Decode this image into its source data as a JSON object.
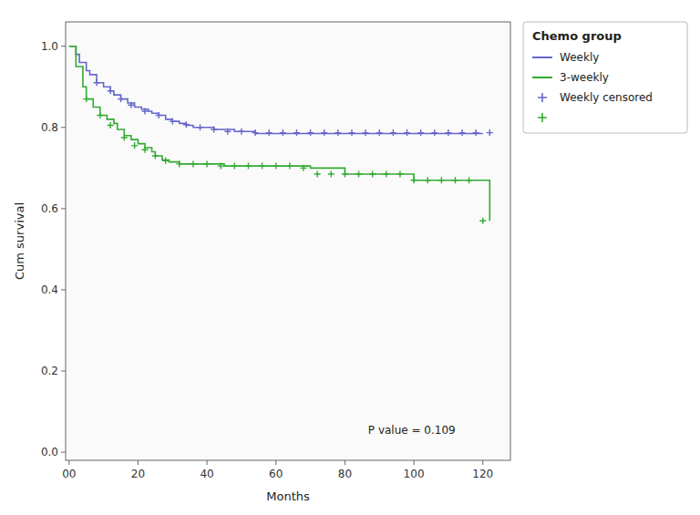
{
  "chart_data": {
    "type": "step",
    "xlabel": "Months",
    "ylabel": "Cum survival",
    "xlim": [
      -1,
      128
    ],
    "ylim": [
      -0.02,
      1.06
    ],
    "xticks": [
      {
        "value": 0,
        "label": "00"
      },
      20,
      40,
      60,
      80,
      100,
      120
    ],
    "yticks": [
      {
        "value": 0.0,
        "label": "0.0"
      },
      0.2,
      0.4,
      0.6,
      0.8,
      {
        "value": 1.0,
        "label": "1.0"
      }
    ],
    "grid": false,
    "legend": "right",
    "legend_title": "Chemo group",
    "annotation": "P value = 0.109",
    "series": [
      {
        "name": "Weekly",
        "type": "step",
        "color": "#6666cc",
        "x": [
          0,
          2,
          3,
          5,
          6,
          8,
          10,
          12,
          13,
          15,
          17,
          19,
          21,
          23,
          24,
          26,
          28,
          30,
          32,
          34,
          36,
          38,
          42,
          48,
          54,
          58,
          120
        ],
        "values": [
          1.0,
          0.98,
          0.96,
          0.94,
          0.93,
          0.91,
          0.9,
          0.89,
          0.88,
          0.87,
          0.86,
          0.85,
          0.845,
          0.84,
          0.835,
          0.83,
          0.82,
          0.815,
          0.81,
          0.805,
          0.8,
          0.8,
          0.795,
          0.79,
          0.785,
          0.785,
          0.785
        ]
      },
      {
        "name": "3-weekly",
        "type": "step",
        "color": "#33aa33",
        "x": [
          0,
          2,
          4,
          5,
          7,
          9,
          11,
          13,
          14,
          16,
          18,
          20,
          22,
          24,
          25,
          27,
          29,
          32,
          36,
          40,
          45,
          50,
          60,
          70,
          80,
          95,
          99,
          100,
          120,
          122
        ],
        "values": [
          1.0,
          0.95,
          0.9,
          0.87,
          0.85,
          0.83,
          0.82,
          0.81,
          0.795,
          0.78,
          0.77,
          0.76,
          0.75,
          0.74,
          0.73,
          0.72,
          0.715,
          0.71,
          0.71,
          0.71,
          0.705,
          0.705,
          0.705,
          0.7,
          0.685,
          0.685,
          0.685,
          0.67,
          0.67,
          0.57
        ]
      },
      {
        "name": "Weekly censored",
        "type": "scatter",
        "marker": "plus",
        "color": "#6666cc",
        "x": [
          8,
          12,
          15,
          18,
          22,
          26,
          30,
          34,
          38,
          42,
          46,
          50,
          54,
          58,
          62,
          66,
          70,
          74,
          78,
          82,
          86,
          90,
          94,
          98,
          102,
          106,
          110,
          114,
          118,
          122
        ],
        "values": [
          0.91,
          0.89,
          0.87,
          0.855,
          0.84,
          0.83,
          0.815,
          0.807,
          0.8,
          0.795,
          0.79,
          0.79,
          0.787,
          0.787,
          0.787,
          0.787,
          0.787,
          0.787,
          0.787,
          0.787,
          0.787,
          0.787,
          0.787,
          0.787,
          0.787,
          0.787,
          0.787,
          0.787,
          0.787,
          0.787
        ]
      },
      {
        "type": "scatter",
        "marker": "plus",
        "color": "#33aa33",
        "x": [
          5,
          9,
          12,
          16,
          19,
          22,
          25,
          28,
          32,
          36,
          40,
          44,
          48,
          52,
          56,
          60,
          64,
          68,
          72,
          76,
          80,
          84,
          88,
          92,
          96,
          100,
          104,
          108,
          112,
          116,
          120
        ],
        "values": [
          0.87,
          0.83,
          0.805,
          0.775,
          0.755,
          0.745,
          0.73,
          0.718,
          0.71,
          0.71,
          0.71,
          0.705,
          0.705,
          0.705,
          0.705,
          0.705,
          0.705,
          0.7,
          0.685,
          0.685,
          0.685,
          0.685,
          0.685,
          0.685,
          0.685,
          0.67,
          0.67,
          0.67,
          0.67,
          0.67,
          0.57
        ]
      }
    ]
  }
}
